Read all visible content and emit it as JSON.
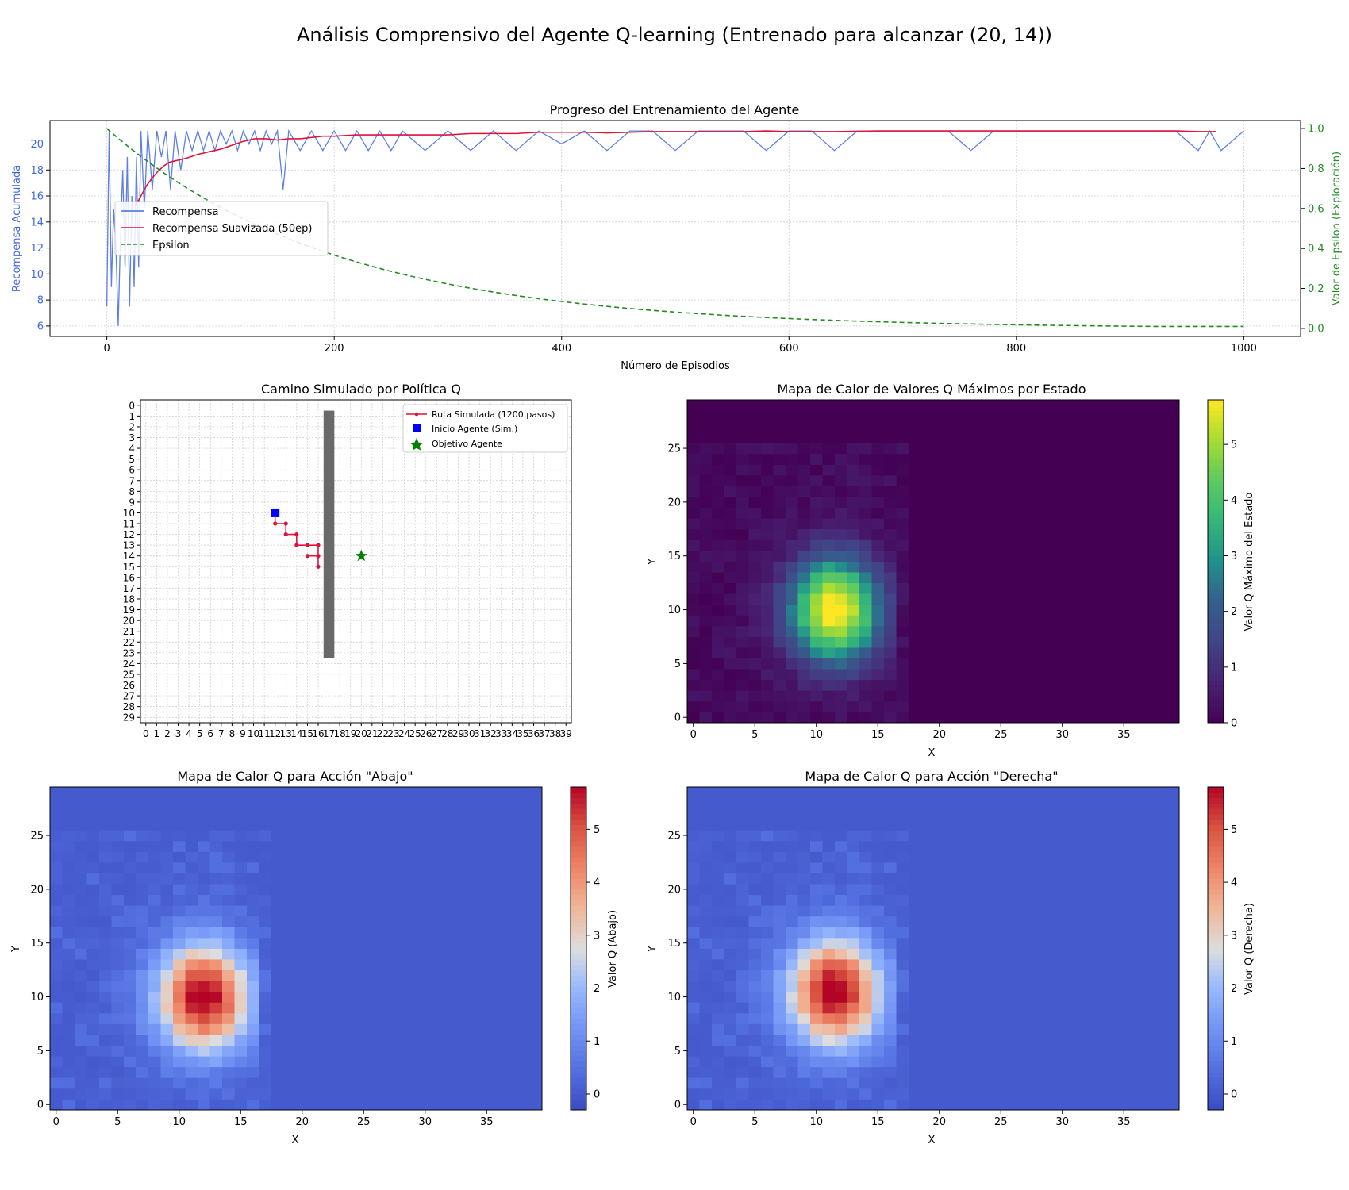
{
  "figure": {
    "suptitle": "Análisis Comprensivo del Agente Q-learning (Entrenado para alcanzar (20, 14))"
  },
  "chart_data": [
    {
      "id": "training",
      "type": "line",
      "title": "Progreso del Entrenamiento del Agente",
      "xlabel": "Número de Episodios",
      "ylabel": "Recompensa Acumulada",
      "ylabel_right": "Valor de Epsilon (Exploración)",
      "xlim": [
        -50,
        1050
      ],
      "ylim": [
        5.2,
        21.8
      ],
      "ylim_right": [
        -0.04,
        1.04
      ],
      "xticks": [
        0,
        200,
        400,
        600,
        800,
        1000
      ],
      "yticks": [
        6,
        8,
        10,
        12,
        14,
        16,
        18,
        20
      ],
      "yticks_right": [
        0.0,
        0.2,
        0.4,
        0.6,
        0.8,
        1.0
      ],
      "grid": true,
      "legend_position": "center-left",
      "series": [
        {
          "name": "Recompensa",
          "axis": "left",
          "color": "#4169e1",
          "x": [
            0,
            2,
            4,
            6,
            8,
            10,
            12,
            14,
            16,
            18,
            20,
            22,
            24,
            26,
            28,
            30,
            33,
            36,
            40,
            44,
            48,
            52,
            56,
            60,
            65,
            70,
            75,
            80,
            85,
            90,
            95,
            100,
            105,
            110,
            115,
            120,
            125,
            130,
            135,
            140,
            145,
            150,
            155,
            160,
            170,
            180,
            190,
            200,
            210,
            220,
            230,
            240,
            250,
            260,
            280,
            300,
            320,
            340,
            360,
            380,
            400,
            420,
            440,
            460,
            480,
            500,
            520,
            540,
            560,
            580,
            600,
            620,
            640,
            660,
            680,
            700,
            720,
            740,
            760,
            780,
            800,
            820,
            840,
            860,
            880,
            900,
            920,
            940,
            960,
            970,
            980,
            1000
          ],
          "values": [
            7.5,
            21,
            9,
            15,
            12,
            6,
            13,
            18,
            10.5,
            19,
            7.5,
            16,
            9,
            19,
            10.5,
            21,
            15,
            21,
            16.5,
            21,
            19,
            21,
            16.5,
            21,
            18,
            21,
            19.5,
            21,
            19.5,
            21,
            19.5,
            21,
            20,
            21,
            19.5,
            21,
            20,
            21,
            19.5,
            21,
            20,
            21,
            16.5,
            21,
            19.5,
            21,
            19.5,
            21,
            19.5,
            21,
            19.5,
            21,
            19.5,
            21,
            19.5,
            21,
            19.5,
            21,
            19.5,
            21,
            20,
            21,
            19.5,
            21,
            21,
            19.5,
            21,
            21,
            21,
            19.5,
            21,
            21,
            19.5,
            21,
            21,
            21,
            21,
            21,
            19.5,
            21,
            21,
            21,
            21,
            21,
            21,
            21,
            21,
            21,
            19.5,
            21,
            19.5,
            21
          ]
        },
        {
          "name": "Recompensa Suavizada (50ep)",
          "axis": "left",
          "color": "#dc143c",
          "x": [
            25,
            30,
            35,
            40,
            45,
            50,
            55,
            60,
            70,
            80,
            90,
            100,
            110,
            120,
            130,
            140,
            150,
            160,
            170,
            180,
            190,
            200,
            220,
            240,
            260,
            280,
            300,
            320,
            340,
            360,
            380,
            400,
            420,
            440,
            460,
            480,
            500,
            520,
            540,
            560,
            580,
            600,
            640,
            680,
            720,
            760,
            800,
            840,
            880,
            920,
            940,
            960,
            976
          ],
          "values": [
            15.2,
            16.0,
            16.8,
            17.4,
            17.9,
            18.3,
            18.6,
            18.7,
            18.9,
            19.2,
            19.4,
            19.6,
            19.9,
            20.2,
            20.4,
            20.4,
            20.3,
            20.4,
            20.4,
            20.5,
            20.6,
            20.6,
            20.7,
            20.7,
            20.7,
            20.7,
            20.7,
            20.8,
            20.8,
            20.8,
            20.9,
            20.9,
            20.9,
            20.85,
            20.9,
            20.95,
            20.95,
            20.95,
            20.95,
            20.95,
            21.0,
            20.95,
            20.95,
            21.0,
            21.0,
            21.0,
            21.0,
            21.0,
            21.0,
            21.0,
            21.0,
            20.95,
            20.95
          ]
        },
        {
          "name": "Epsilon",
          "axis": "right",
          "color": "#228b22",
          "linestyle": "dashed",
          "decay": 0.995,
          "min": 0.01,
          "x_range": [
            0,
            1000
          ]
        }
      ]
    },
    {
      "id": "path",
      "type": "scatter",
      "title": "Camino Simulado por Política Q",
      "xlim": [
        -0.5,
        39.5
      ],
      "ylim": [
        -0.5,
        29.5
      ],
      "y_inverted": true,
      "xticks": [
        0,
        1,
        2,
        3,
        4,
        5,
        6,
        7,
        8,
        9,
        10,
        11,
        12,
        13,
        14,
        15,
        16,
        17,
        18,
        19,
        20,
        21,
        22,
        23,
        24,
        25,
        26,
        27,
        28,
        29,
        30,
        31,
        32,
        33,
        34,
        35,
        36,
        37,
        38,
        39
      ],
      "yticks": [
        0,
        1,
        2,
        3,
        4,
        5,
        6,
        7,
        8,
        9,
        10,
        11,
        12,
        13,
        14,
        15,
        16,
        17,
        18,
        19,
        20,
        21,
        22,
        23,
        24,
        25,
        26,
        27,
        28,
        29
      ],
      "grid": true,
      "legend_position": "upper-right",
      "obstacle": {
        "x": 17,
        "y_from": 1,
        "y_to": 23,
        "color": "#696969"
      },
      "route": {
        "name": "Ruta Simulada (1200 pasos)",
        "color": "#dc143c",
        "points": [
          [
            12,
            10
          ],
          [
            12,
            11
          ],
          [
            13,
            11
          ],
          [
            13,
            12
          ],
          [
            14,
            12
          ],
          [
            14,
            13
          ],
          [
            15,
            13
          ],
          [
            16,
            13
          ],
          [
            16,
            14
          ],
          [
            15,
            14
          ],
          [
            16,
            14
          ],
          [
            16,
            15
          ]
        ]
      },
      "start": {
        "name": "Inicio Agente (Sim.)",
        "x": 12,
        "y": 10,
        "color": "#0000ff"
      },
      "goal": {
        "name": "Objetivo Agente",
        "x": 20,
        "y": 14,
        "color": "#008000"
      }
    },
    {
      "id": "qmax",
      "type": "heatmap",
      "title": "Mapa de Calor de Valores Q Máximos por Estado",
      "xlabel": "X",
      "ylabel": "Y",
      "colorbar_label": "Valor Q Máximo del Estado",
      "colormap": "viridis",
      "vmin": 0,
      "vmax": 5.8,
      "xticks": [
        0,
        5,
        10,
        15,
        20,
        25,
        30,
        35
      ],
      "yticks": [
        0,
        5,
        10,
        15,
        20,
        25
      ],
      "cbar_ticks": [
        0,
        1,
        2,
        3,
        4,
        5
      ],
      "peak": {
        "x": 11.5,
        "y": 10,
        "value": 5.8
      }
    },
    {
      "id": "qdown",
      "type": "heatmap",
      "title": "Mapa de Calor Q para Acción \"Abajo\"",
      "xlabel": "X",
      "ylabel": "Y",
      "colorbar_label": "Valor Q (Abajo)",
      "colormap": "coolwarm",
      "vmin": -0.3,
      "vmax": 5.8,
      "xticks": [
        0,
        5,
        10,
        15,
        20,
        25,
        30,
        35
      ],
      "yticks": [
        0,
        5,
        10,
        15,
        20,
        25
      ],
      "cbar_ticks": [
        0,
        1,
        2,
        3,
        4,
        5
      ],
      "peak": {
        "x": 12,
        "y": 10,
        "value": 5.8
      }
    },
    {
      "id": "qright",
      "type": "heatmap",
      "title": "Mapa de Calor Q para Acción \"Derecha\"",
      "xlabel": "X",
      "ylabel": "Y",
      "colorbar_label": "Valor Q (Derecha)",
      "colormap": "coolwarm",
      "vmin": -0.3,
      "vmax": 5.8,
      "xticks": [
        0,
        5,
        10,
        15,
        20,
        25,
        30,
        35
      ],
      "yticks": [
        0,
        5,
        10,
        15,
        20,
        25
      ],
      "cbar_ticks": [
        0,
        1,
        2,
        3,
        4,
        5
      ],
      "peak": {
        "x": 11.5,
        "y": 10.5,
        "value": 5.8
      }
    }
  ]
}
